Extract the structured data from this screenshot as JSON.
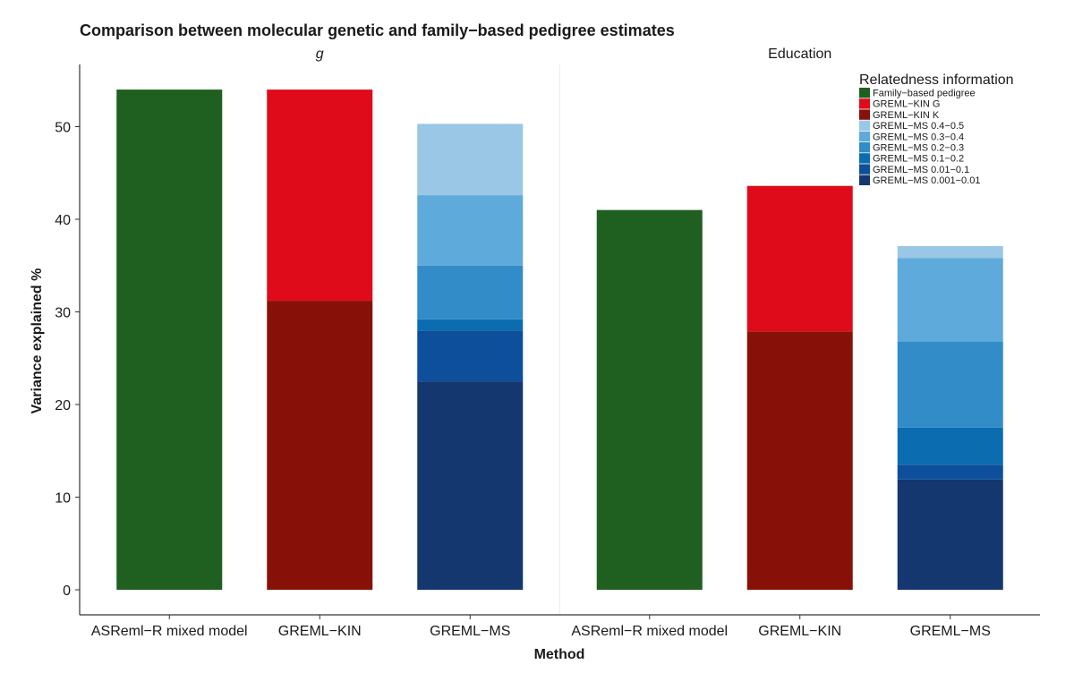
{
  "chart_data": {
    "type": "bar",
    "stacked": true,
    "title": "Comparison between molecular genetic and family−based pedigree estimates",
    "xlabel": "Method",
    "ylabel": "Variance explained %",
    "ylim": [
      0,
      54
    ],
    "yticks": [
      0,
      10,
      20,
      30,
      40,
      50
    ],
    "grid": false,
    "legend": {
      "title": "Relatedness information",
      "placement": "top-right",
      "entries": [
        {
          "label": "Family−based pedigree",
          "color": "#1f5f1f"
        },
        {
          "label": "GREML−KIN G",
          "color": "#e00b1a"
        },
        {
          "label": "GREML−KIN K",
          "color": "#871108"
        },
        {
          "label": "GREML−MS 0.4−0.5",
          "color": "#9ac7e5"
        },
        {
          "label": "GREML−MS 0.3−0.4",
          "color": "#5eaadb"
        },
        {
          "label": "GREML−MS 0.2−0.3",
          "color": "#318cc8"
        },
        {
          "label": "GREML−MS 0.1−0.2",
          "color": "#0c6cb0"
        },
        {
          "label": "GREML−MS 0.01−0.1",
          "color": "#0d4f9a"
        },
        {
          "label": "GREML−MS 0.001−0.01",
          "color": "#14376f"
        }
      ]
    },
    "facets": [
      {
        "label": "g",
        "categories": [
          "ASReml−R mixed model",
          "GREML−KIN",
          "GREML−MS"
        ],
        "bars": [
          [
            {
              "series": "Family−based pedigree",
              "value": 54.0
            }
          ],
          [
            {
              "series": "GREML−KIN K",
              "value": 31.2
            },
            {
              "series": "GREML−KIN G",
              "value": 22.8
            }
          ],
          [
            {
              "series": "GREML−MS 0.001−0.01",
              "value": 22.5
            },
            {
              "series": "GREML−MS 0.01−0.1",
              "value": 5.5
            },
            {
              "series": "GREML−MS 0.1−0.2",
              "value": 1.2
            },
            {
              "series": "GREML−MS 0.2−0.3",
              "value": 5.8
            },
            {
              "series": "GREML−MS 0.3−0.4",
              "value": 7.6
            },
            {
              "series": "GREML−MS 0.4−0.5",
              "value": 7.7
            }
          ]
        ]
      },
      {
        "label": "Education",
        "categories": [
          "ASReml−R mixed model",
          "GREML−KIN",
          "GREML−MS"
        ],
        "bars": [
          [
            {
              "series": "Family−based pedigree",
              "value": 41.0
            }
          ],
          [
            {
              "series": "GREML−KIN K",
              "value": 27.9
            },
            {
              "series": "GREML−KIN G",
              "value": 15.7
            }
          ],
          [
            {
              "series": "GREML−MS 0.001−0.01",
              "value": 11.9
            },
            {
              "series": "GREML−MS 0.01−0.1",
              "value": 1.6
            },
            {
              "series": "GREML−MS 0.1−0.2",
              "value": 4.0
            },
            {
              "series": "GREML−MS 0.2−0.3",
              "value": 9.3
            },
            {
              "series": "GREML−MS 0.3−0.4",
              "value": 9.0
            },
            {
              "series": "GREML−MS 0.4−0.5",
              "value": 1.3
            }
          ]
        ]
      }
    ]
  }
}
